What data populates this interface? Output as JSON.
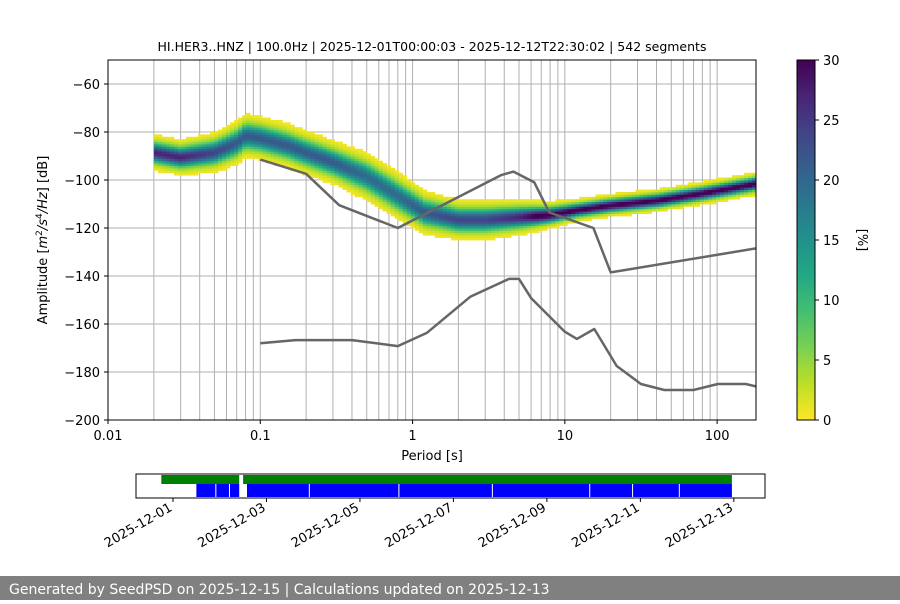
{
  "chart_data": [
    {
      "type": "heatmap",
      "title": "HI.HER3..HNZ | 100.0Hz | 2025-12-01T00:00:03 - 2025-12-12T22:30:02 | 542 segments",
      "xlabel": "Period [s]",
      "ylabel_prefix": "Amplitude [",
      "ylabel_suffix": "] [dB]",
      "ylabel_unit_parts": [
        "m",
        "2",
        "/s",
        "4",
        "/Hz"
      ],
      "x_scale": "log",
      "xlim": [
        0.01,
        180
      ],
      "ylim": [
        -200,
        -50
      ],
      "x_ticks": [
        0.01,
        0.1,
        1,
        10,
        100
      ],
      "x_tick_labels": [
        "0.01",
        "0.1",
        "1",
        "10",
        "100"
      ],
      "y_ticks": [
        -200,
        -180,
        -160,
        -140,
        -120,
        -100,
        -80,
        -60
      ],
      "y_tick_labels": [
        "−200",
        "−180",
        "−160",
        "−140",
        "−120",
        "−100",
        "−80",
        "−60"
      ],
      "grid": true,
      "period_grid_lines": [
        0.02,
        0.03,
        0.04,
        0.05,
        0.06,
        0.07,
        0.08,
        0.09,
        0.1,
        0.2,
        0.3,
        0.4,
        0.5,
        0.6,
        0.7,
        0.8,
        0.9,
        1,
        2,
        3,
        4,
        5,
        6,
        7,
        8,
        9,
        10,
        20,
        30,
        40,
        50,
        60,
        70,
        80,
        90,
        100
      ],
      "colormap": "viridis_r",
      "colorbar": {
        "label": "[%]",
        "range": [
          0,
          30
        ],
        "ticks": [
          0,
          5,
          10,
          15,
          20,
          25,
          30
        ],
        "tick_labels": [
          "0",
          "5",
          "10",
          "15",
          "20",
          "25",
          "30"
        ]
      },
      "psd_mode": {
        "period": [
          0.02,
          0.03,
          0.05,
          0.07,
          0.08,
          0.1,
          0.15,
          0.2,
          0.3,
          0.5,
          0.8,
          1.2,
          2,
          3,
          5,
          8,
          12,
          20,
          40,
          80,
          180
        ],
        "db": [
          -89,
          -91,
          -89,
          -85,
          -82,
          -83,
          -86,
          -89,
          -93,
          -99,
          -107,
          -114,
          -117,
          -117,
          -116,
          -115,
          -113,
          -111,
          -109,
          -106,
          -102
        ],
        "spread_db": [
          8,
          8,
          9,
          10,
          10,
          10,
          10,
          10,
          10,
          11,
          11,
          10,
          9,
          9,
          8,
          6,
          5,
          5,
          5,
          5,
          5
        ]
      },
      "series": [
        {
          "name": "",
          "x": [
            0.1,
            0.2,
            0.33,
            0.8,
            3.8,
            4.6,
            6.3,
            7.9,
            15.4,
            20,
            180
          ],
          "y": [
            -91.5,
            -97.4,
            -110.5,
            -120,
            -98,
            -96.5,
            -101,
            -113.5,
            -120,
            -138.5,
            -128.5
          ]
        },
        {
          "name": "",
          "x": [
            0.1,
            0.17,
            0.4,
            0.8,
            1.24,
            2.4,
            4.3,
            5,
            6,
            10,
            12,
            15.6,
            21.9,
            31.6,
            45,
            70,
            101,
            154,
            180
          ],
          "y": [
            -168,
            -166.7,
            -166.7,
            -169.2,
            -163.7,
            -148.6,
            -141.2,
            -141.2,
            -149.2,
            -163.2,
            -166.2,
            -162.1,
            -177.5,
            -185,
            -187.5,
            -187.5,
            -185,
            -185,
            -186
          ]
        }
      ]
    },
    {
      "type": "gantt",
      "x_axis": "date",
      "xlim": [
        "2025-11-30T05:00",
        "2025-12-13T16:00"
      ],
      "x_ticks": [
        "2025-12-01",
        "2025-12-03",
        "2025-12-05",
        "2025-12-07",
        "2025-12-09",
        "2025-12-11",
        "2025-12-13"
      ],
      "x_tick_labels": [
        "2025-12-01",
        "2025-12-03",
        "2025-12-05",
        "2025-12-07",
        "2025-12-09",
        "2025-12-11",
        "2025-12-13"
      ],
      "data_coverage": {
        "color": "#008000",
        "segments": [
          [
            "2025-11-30T18:00",
            "2025-12-02T10:00"
          ],
          [
            "2025-12-02T12:00",
            "2025-12-12T23:00"
          ]
        ]
      },
      "psd_coverage": {
        "color": "#0000ff",
        "segments": [
          [
            "2025-12-01T12:00",
            "2025-12-02T10:00"
          ],
          [
            "2025-12-02T14:00",
            "2025-12-12T23:00"
          ]
        ],
        "gaps": [
          "2025-12-01T22:00",
          "2025-12-02T05:00",
          "2025-12-03T22:00",
          "2025-12-05T20:00",
          "2025-12-07T20:00",
          "2025-12-09T22:00",
          "2025-12-10T20:00",
          "2025-12-11T20:00"
        ]
      }
    }
  ],
  "footer": {
    "text": "Generated by SeedPSD on 2025-12-15 | Calculations updated on 2025-12-13"
  }
}
